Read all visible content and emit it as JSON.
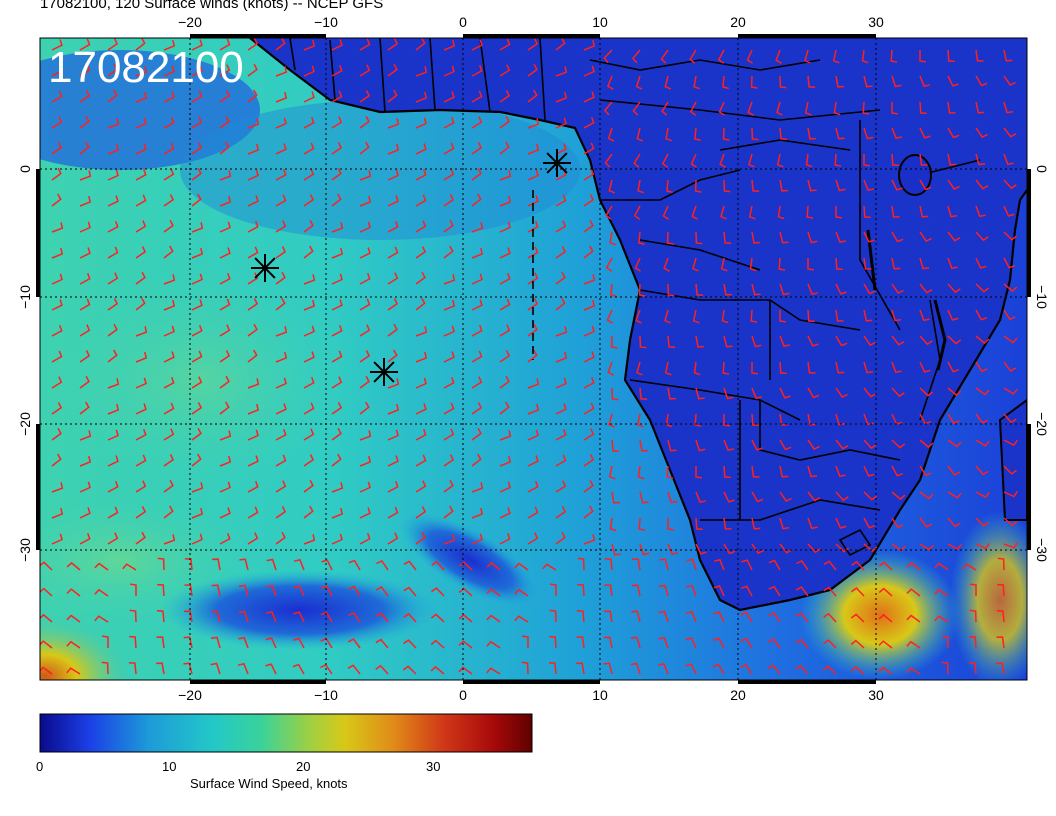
{
  "header": {
    "title": "17082100, 120 Surface winds (knots) -- NCEP GFS"
  },
  "map": {
    "stamp": "17082100",
    "longitude_ticks": [
      "−20",
      "−10",
      "0",
      "10",
      "20",
      "30"
    ],
    "latitude_ticks": [
      "0",
      "−10",
      "−20",
      "−30"
    ],
    "latitude_ticks_right": [
      "0",
      "−10",
      "−20",
      "−30"
    ],
    "markers": [
      "asterisk-marker",
      "asterisk-marker",
      "asterisk-marker"
    ],
    "barb_color": "#ff2020",
    "ocean_colors": [
      "#1a3fd6",
      "#21c0d8",
      "#3be0a0",
      "#d8d020",
      "#d06018"
    ],
    "land_color": "#1a2fc8"
  },
  "colorbar": {
    "label": "Surface Wind Speed, knots",
    "ticks": [
      "0",
      "10",
      "20",
      "30"
    ],
    "colors": [
      "#0a0a8a",
      "#1b3fe6",
      "#1d9ad8",
      "#22c8c8",
      "#3ad29a",
      "#a0d040",
      "#d8c818",
      "#e08a18",
      "#d03818",
      "#a80a0a",
      "#600000"
    ]
  }
}
